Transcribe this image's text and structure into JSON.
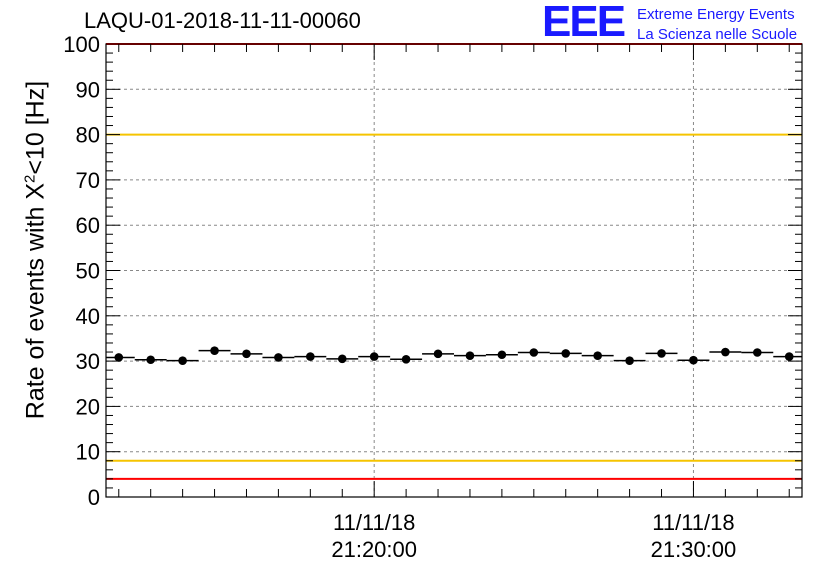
{
  "title": "LAQU-01-2018-11-11-00060",
  "logo": {
    "mark": "EEE",
    "line1": "Extreme Energy Events",
    "line2": "La Scienza nelle Scuole"
  },
  "chart_data": {
    "type": "scatter",
    "title": "LAQU-01-2018-11-11-00060",
    "ylabel_prefix": "Rate of events with X",
    "ylabel_sup": "2",
    "ylabel_suffix": "<10 [Hz]",
    "ylim": [
      0,
      100
    ],
    "yticks": [
      0,
      10,
      20,
      30,
      40,
      50,
      60,
      70,
      80,
      90,
      100
    ],
    "xlim_minutes": [
      11.6,
      33.4
    ],
    "xticks": [
      {
        "minute": 20,
        "date": "11/11/18",
        "time": "21:20:00"
      },
      {
        "minute": 30,
        "date": "11/11/18",
        "time": "21:30:00"
      }
    ],
    "bin_width_minutes": 1,
    "grid": true,
    "reference_lines": [
      {
        "value": 100,
        "color": "#ff0000"
      },
      {
        "value": 80,
        "color": "#f5c400"
      },
      {
        "value": 8,
        "color": "#f5c400"
      },
      {
        "value": 4,
        "color": "#ff0000"
      }
    ],
    "x_minutes": [
      12,
      13,
      14,
      15,
      16,
      17,
      18,
      19,
      20,
      21,
      22,
      23,
      24,
      25,
      26,
      27,
      28,
      29,
      30,
      31,
      32,
      33
    ],
    "values": [
      30.8,
      30.3,
      30.1,
      32.3,
      31.6,
      30.8,
      31.0,
      30.5,
      31.0,
      30.4,
      31.6,
      31.2,
      31.4,
      31.9,
      31.7,
      31.2,
      30.1,
      31.7,
      30.2,
      32.0,
      31.9,
      31.0
    ]
  }
}
